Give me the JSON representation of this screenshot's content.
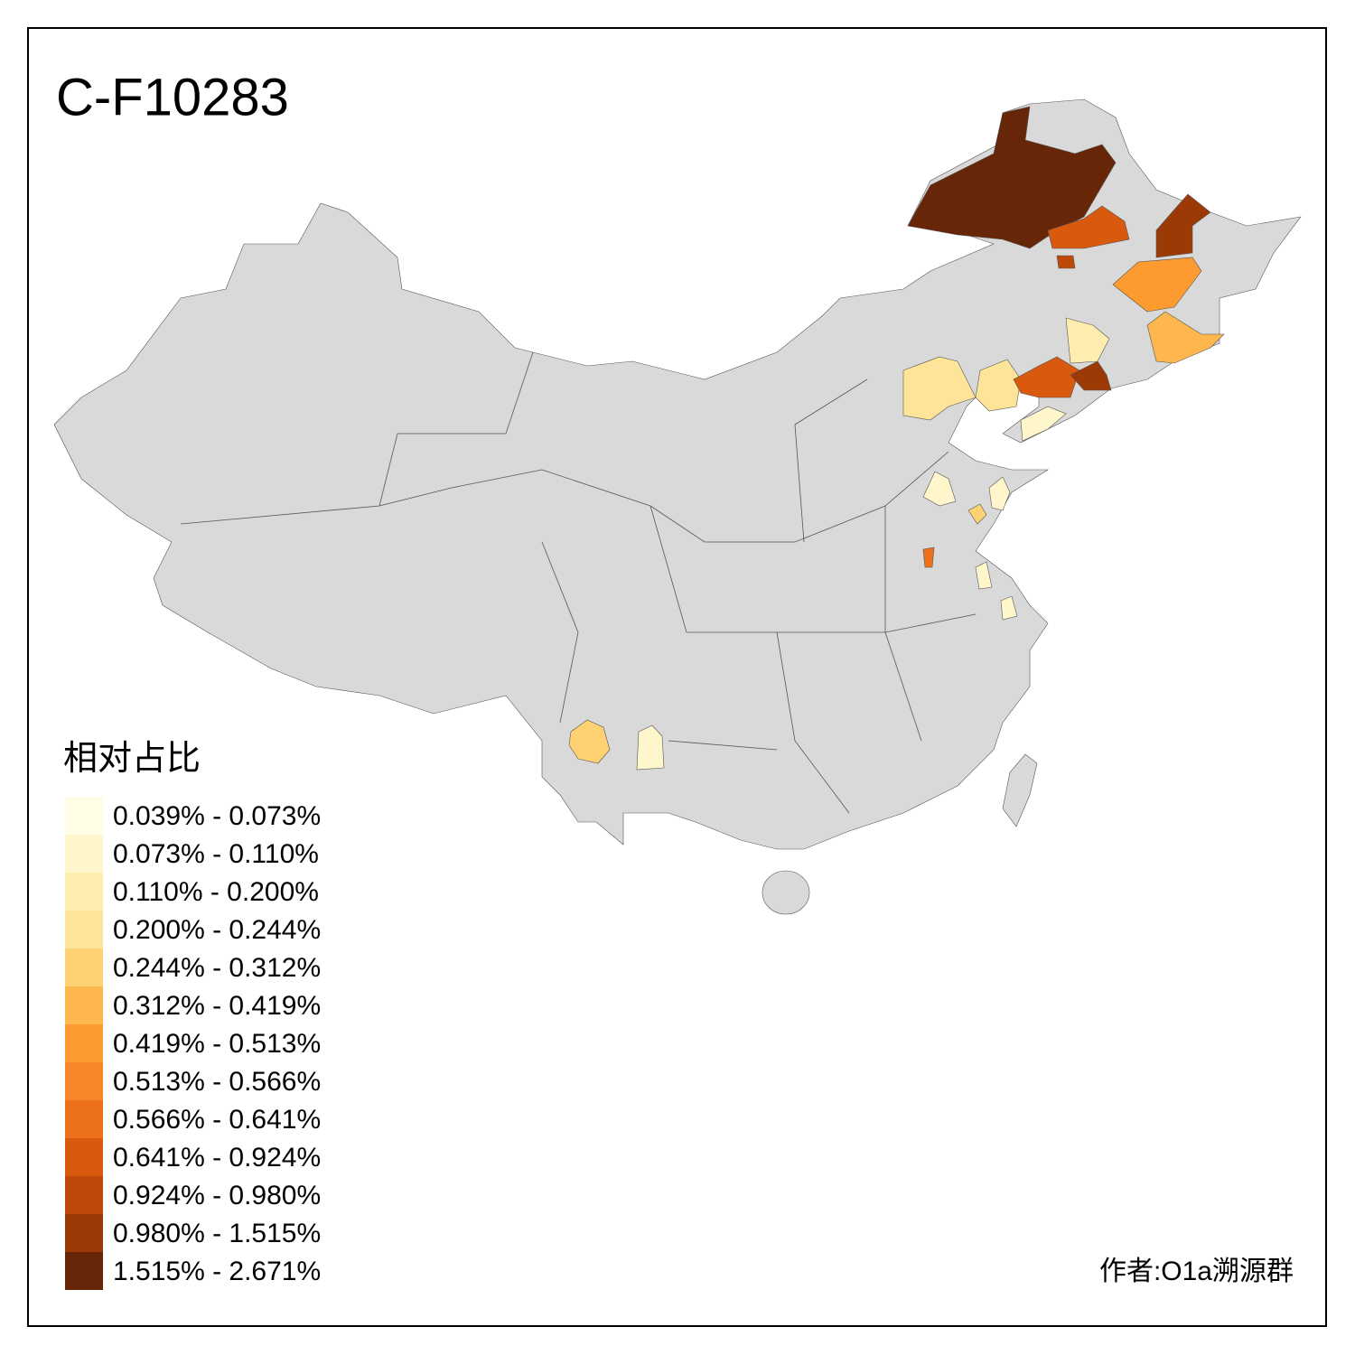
{
  "title": "C-F10283",
  "legend": {
    "title": "相对占比",
    "items": [
      {
        "label": "0.039% - 0.073%",
        "color": "#fffde5"
      },
      {
        "label": "0.073% - 0.110%",
        "color": "#fff6cc"
      },
      {
        "label": "0.110% - 0.200%",
        "color": "#ffedb0"
      },
      {
        "label": "0.200% - 0.244%",
        "color": "#fee498"
      },
      {
        "label": "0.244% - 0.312%",
        "color": "#fed273"
      },
      {
        "label": "0.312% - 0.419%",
        "color": "#feb74e"
      },
      {
        "label": "0.419% - 0.513%",
        "color": "#fd9b31"
      },
      {
        "label": "0.513% - 0.566%",
        "color": "#f7862a"
      },
      {
        "label": "0.566% - 0.641%",
        "color": "#ec6f1c"
      },
      {
        "label": "0.641% - 0.924%",
        "color": "#d9590e"
      },
      {
        "label": "0.924% - 0.980%",
        "color": "#bf4909"
      },
      {
        "label": "0.980% - 1.515%",
        "color": "#9c3a06"
      },
      {
        "label": "1.515% - 2.671%",
        "color": "#672608"
      }
    ]
  },
  "credit": "作者:O1a溯源群"
}
